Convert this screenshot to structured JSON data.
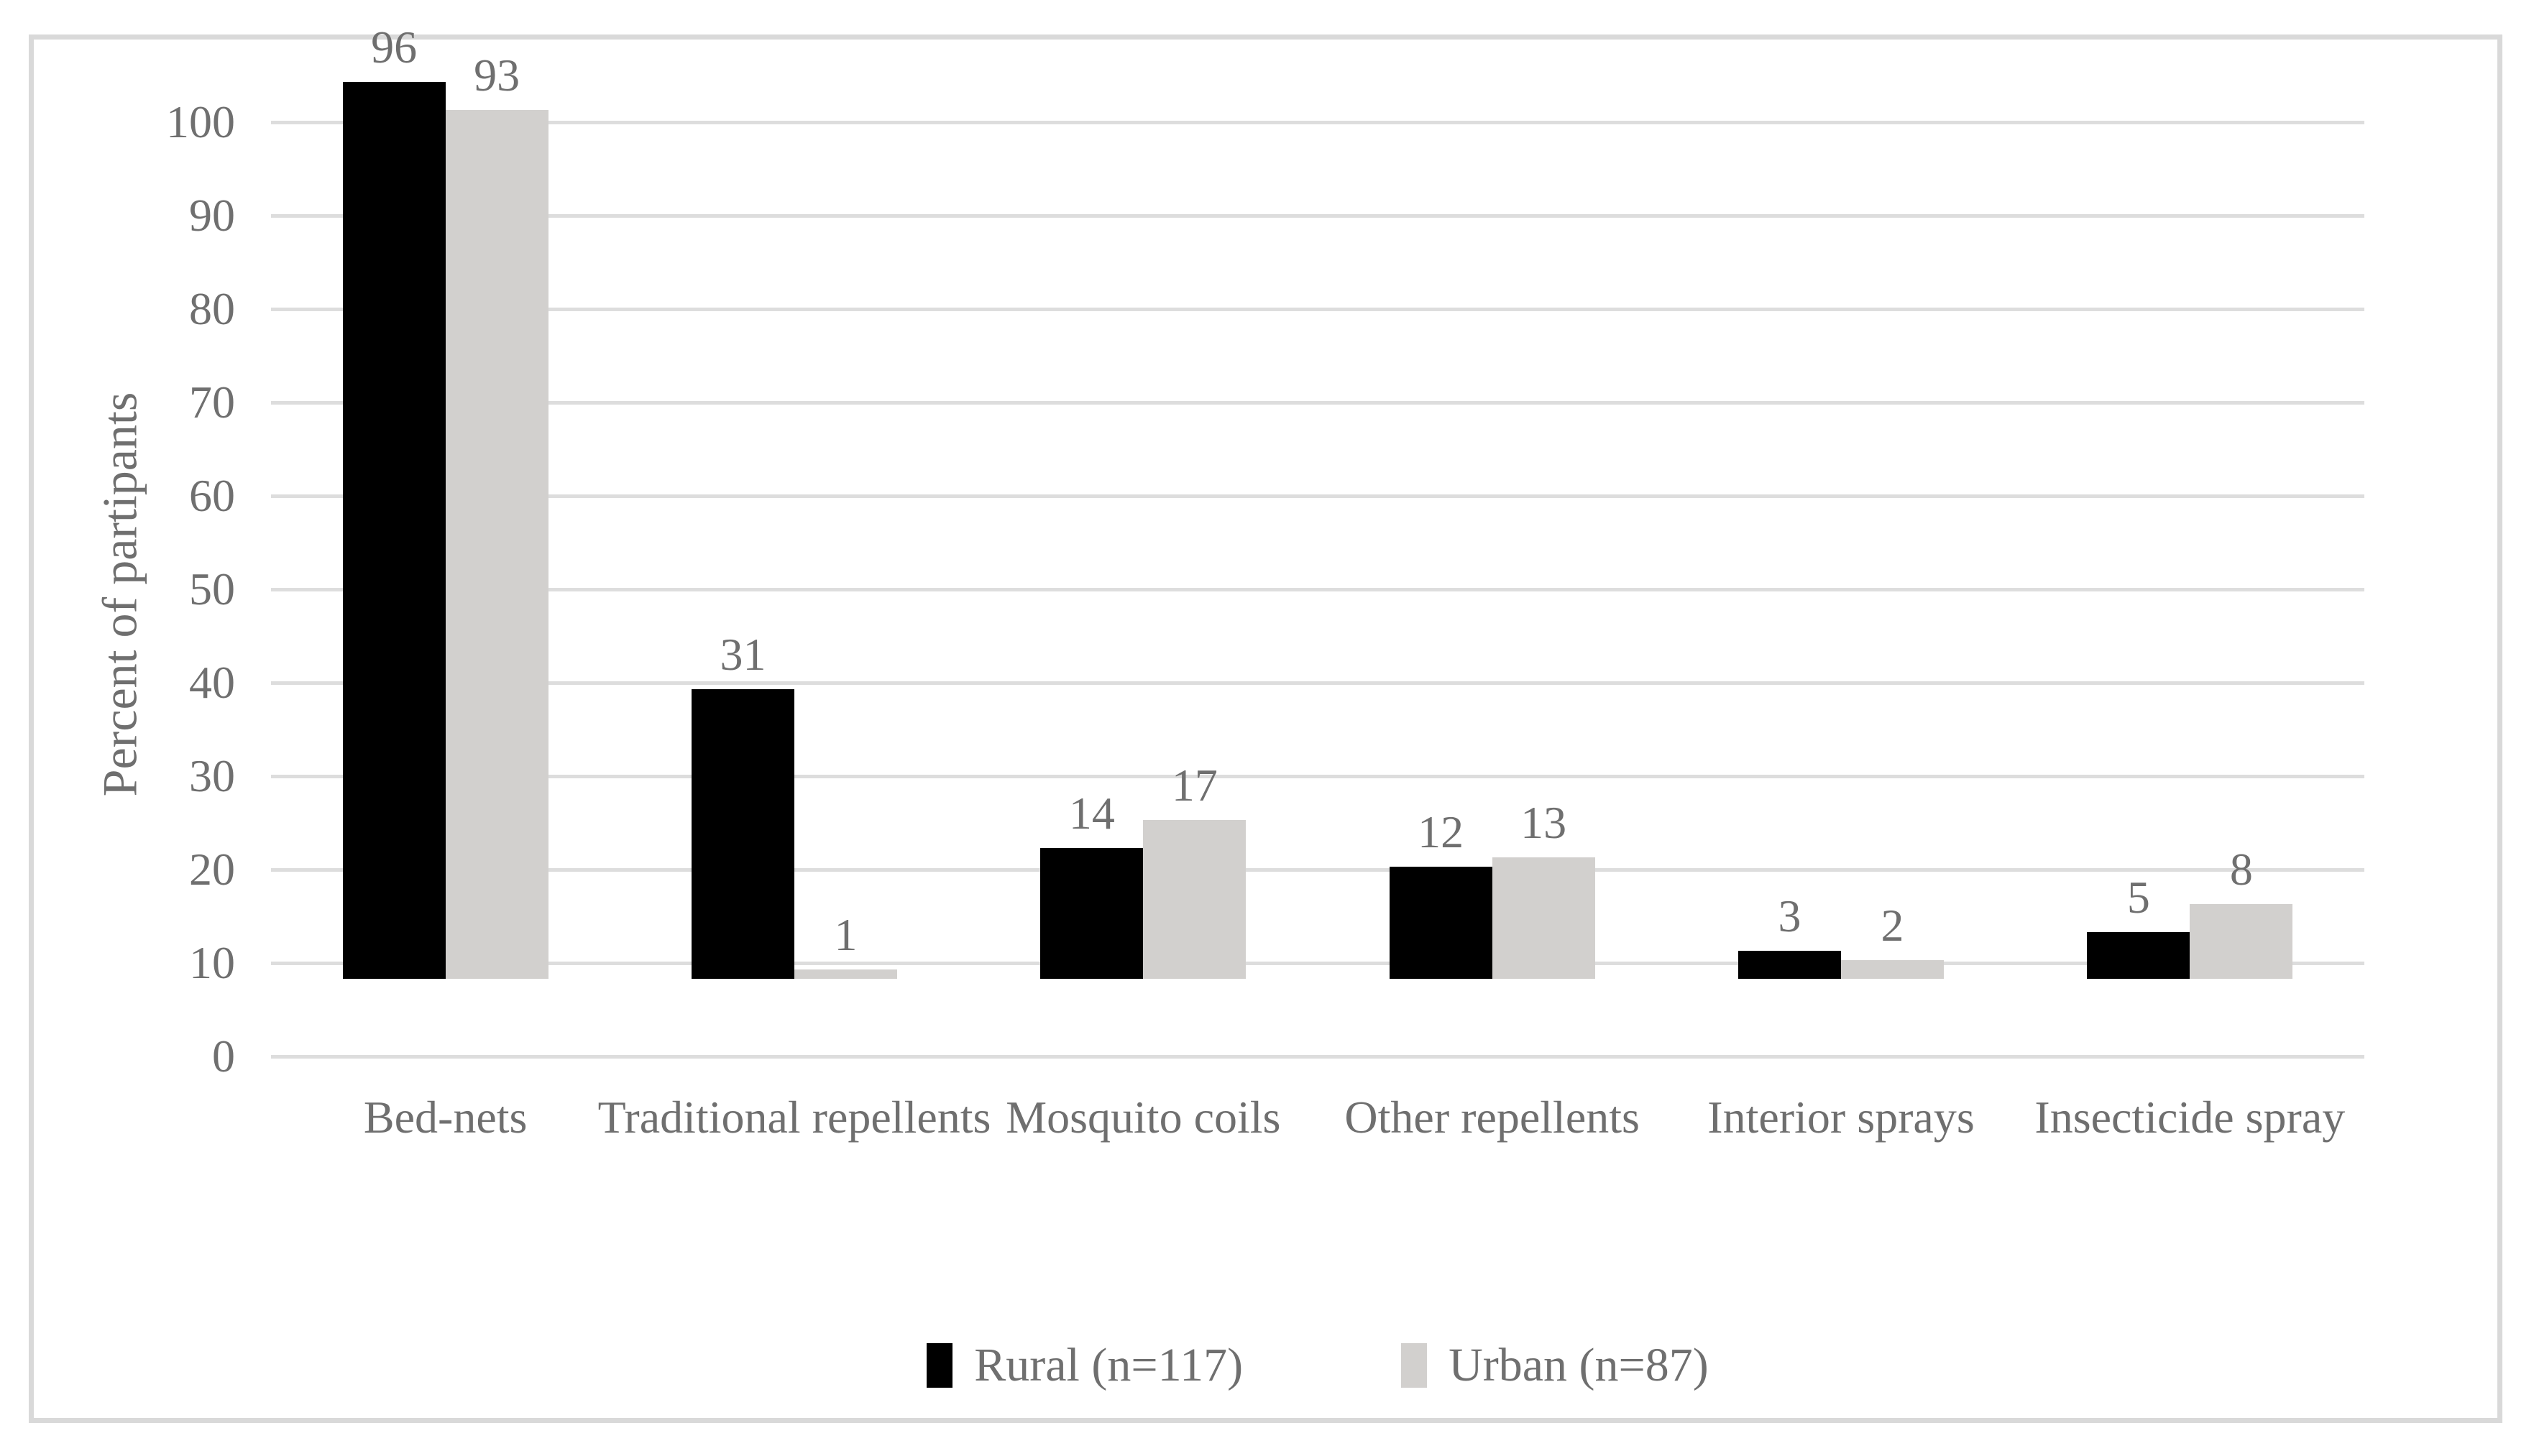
{
  "chart_data": {
    "type": "bar",
    "title": "",
    "categories": [
      "Bed-nets",
      "Traditional repellents",
      "Mosquito coils",
      "Other repellents",
      "Interior sprays",
      "Insecticide spray"
    ],
    "series": [
      {
        "name": "Rural (n=117)",
        "color": "#000000",
        "values": [
          96,
          31,
          14,
          12,
          3,
          5
        ]
      },
      {
        "name": "Urban (n=87)",
        "color": "#d2d0ce",
        "values": [
          93,
          1,
          17,
          13,
          2,
          8
        ]
      }
    ],
    "xlabel": "",
    "ylabel": "Percent of partipants",
    "ylim": [
      0,
      100
    ],
    "ytick_step": 10,
    "yticks": [
      0,
      10,
      20,
      30,
      40,
      50,
      60,
      70,
      80,
      90,
      100
    ],
    "grid": true,
    "value_labels": true,
    "legend_position": "bottom"
  },
  "colors": {
    "background": "#ffffff",
    "frame_border": "#d9d9d9",
    "gridline": "#dddddd",
    "text": "#6f6f6f",
    "rural_bar": "#000000",
    "urban_bar": "#d2d0ce"
  }
}
